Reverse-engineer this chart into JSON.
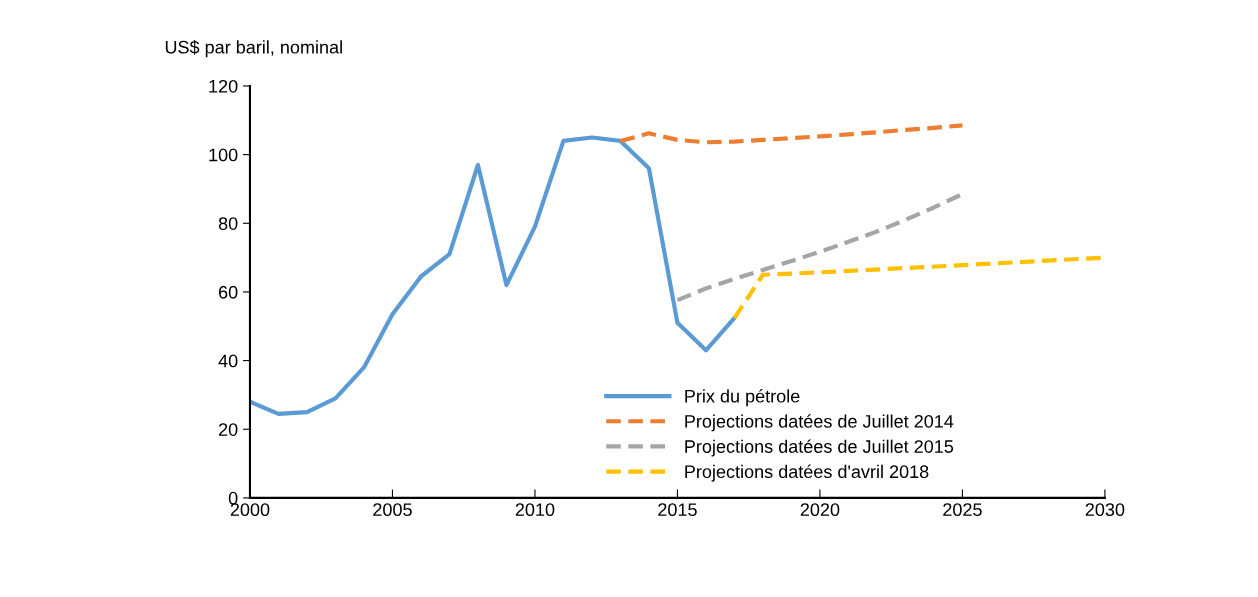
{
  "chart_data": {
    "type": "line",
    "ylabel": "US$ par baril, nominal",
    "xlim": [
      2000,
      2030
    ],
    "xticks": [
      2000,
      2005,
      2010,
      2015,
      2020,
      2025,
      2030
    ],
    "ylim": [
      0,
      120
    ],
    "yticks": [
      0,
      20,
      40,
      60,
      80,
      100,
      120
    ],
    "grid": false,
    "legend": "bottom",
    "series": [
      {
        "name": "Prix du pétrole",
        "color": "#5b9bd5",
        "line_style": "solid",
        "x": [
          2000,
          2001,
          2002,
          2003,
          2004,
          2005,
          2006,
          2007,
          2008,
          2009,
          2010,
          2011,
          2012,
          2013,
          2014,
          2015,
          2016,
          2017
        ],
        "values": [
          28,
          24.5,
          25,
          29,
          38,
          53.5,
          64.5,
          71,
          97,
          62,
          79,
          104,
          105,
          104,
          96,
          51,
          43,
          52.4
        ]
      },
      {
        "name": "Projections datées de Juillet 2014",
        "color": "#ed7d31",
        "line_style": "dashed",
        "x": [
          2013,
          2014,
          2015,
          2016,
          2017,
          2018,
          2019,
          2020,
          2021,
          2022,
          2023,
          2024,
          2025
        ],
        "values": [
          104,
          106.2,
          104.3,
          103.6,
          103.8,
          104.3,
          104.8,
          105.3,
          105.9,
          106.5,
          107.2,
          107.8,
          108.5
        ]
      },
      {
        "name": "Projections datées de Juillet 2015",
        "color": "#a5a5a5",
        "line_style": "dashed",
        "x": [
          2015,
          2016,
          2017,
          2018,
          2019,
          2020,
          2021,
          2022,
          2023,
          2024,
          2025
        ],
        "values": [
          57.6,
          61,
          63.8,
          66.4,
          69,
          71.7,
          74.6,
          77.6,
          81,
          84.6,
          88.5
        ]
      },
      {
        "name": "Projections datées d'avril 2018",
        "color": "#ffc000",
        "line_style": "dashed",
        "x": [
          2017,
          2018,
          2020,
          2025,
          2030
        ],
        "values": [
          52.4,
          65,
          65.7,
          67.8,
          70
        ]
      }
    ]
  }
}
